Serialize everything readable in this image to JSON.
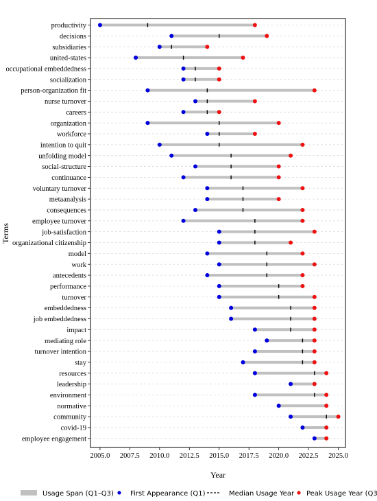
{
  "chart_data": {
    "type": "dumbbell",
    "xlabel": "Year",
    "ylabel": "Terms",
    "xlim": [
      2004.2,
      2025.6
    ],
    "xticks": [
      2005.0,
      2007.5,
      2010.0,
      2012.5,
      2015.0,
      2017.5,
      2020.0,
      2022.5,
      2025.0
    ],
    "xtick_labels": [
      "2005.0",
      "2007.5",
      "2010.0",
      "2012.5",
      "2015.0",
      "2017.5",
      "2020.0",
      "2022.5",
      "2025.0"
    ],
    "grid": "horizontal dashed",
    "legend_position": "bottom",
    "legend": {
      "span": "Usage Span (Q1–Q3)",
      "first": "First Appearance (Q1)",
      "median": "Median Usage Year",
      "peak": "Peak Usage Year (Q3)"
    },
    "colors": {
      "span": "#c0c0c0",
      "first": "#0000dd",
      "median": "#000000",
      "peak": "#ee1111",
      "grid": "#d9d9d9"
    },
    "terms": [
      {
        "term": "productivity",
        "q1": 2005,
        "median": 2009,
        "q3": 2018
      },
      {
        "term": "decisions",
        "q1": 2011,
        "median": 2015,
        "q3": 2019
      },
      {
        "term": "subsidiaries",
        "q1": 2010,
        "median": 2011,
        "q3": 2014
      },
      {
        "term": "united-states",
        "q1": 2008,
        "median": 2012,
        "q3": 2017
      },
      {
        "term": "occupational embeddedness",
        "q1": 2012,
        "median": 2013,
        "q3": 2015
      },
      {
        "term": "socialization",
        "q1": 2012,
        "median": 2013,
        "q3": 2015
      },
      {
        "term": "person-organization fit",
        "q1": 2009,
        "median": 2014,
        "q3": 2023
      },
      {
        "term": "nurse turnover",
        "q1": 2013,
        "median": 2014,
        "q3": 2018
      },
      {
        "term": "careers",
        "q1": 2012,
        "median": 2014,
        "q3": 2015
      },
      {
        "term": "organization",
        "q1": 2009,
        "median": 2015,
        "q3": 2020
      },
      {
        "term": "workforce",
        "q1": 2014,
        "median": 2015,
        "q3": 2018
      },
      {
        "term": "intention to quit",
        "q1": 2010,
        "median": 2015,
        "q3": 2022
      },
      {
        "term": "unfolding model",
        "q1": 2011,
        "median": 2016,
        "q3": 2021
      },
      {
        "term": "social-structure",
        "q1": 2013,
        "median": 2016,
        "q3": 2020
      },
      {
        "term": "continuance",
        "q1": 2012,
        "median": 2016,
        "q3": 2020
      },
      {
        "term": "voluntary turnover",
        "q1": 2014,
        "median": 2017,
        "q3": 2022
      },
      {
        "term": "metaanalysis",
        "q1": 2014,
        "median": 2017,
        "q3": 2020
      },
      {
        "term": "consequences",
        "q1": 2013,
        "median": 2017,
        "q3": 2022
      },
      {
        "term": "employee turnover",
        "q1": 2012,
        "median": 2018,
        "q3": 2022
      },
      {
        "term": "job-satisfaction",
        "q1": 2015,
        "median": 2018,
        "q3": 2023
      },
      {
        "term": "organizational citizenship",
        "q1": 2015,
        "median": 2018,
        "q3": 2021
      },
      {
        "term": "model",
        "q1": 2014,
        "median": 2019,
        "q3": 2022
      },
      {
        "term": "work",
        "q1": 2015,
        "median": 2019,
        "q3": 2023
      },
      {
        "term": "antecedents",
        "q1": 2014,
        "median": 2019,
        "q3": 2022
      },
      {
        "term": "performance",
        "q1": 2015,
        "median": 2020,
        "q3": 2022
      },
      {
        "term": "turnover",
        "q1": 2015,
        "median": 2020,
        "q3": 2023
      },
      {
        "term": "embeddedness",
        "q1": 2016,
        "median": 2021,
        "q3": 2023
      },
      {
        "term": "job embeddedness",
        "q1": 2016,
        "median": 2021,
        "q3": 2023
      },
      {
        "term": "impact",
        "q1": 2018,
        "median": 2021,
        "q3": 2023
      },
      {
        "term": "mediating role",
        "q1": 2019,
        "median": 2022,
        "q3": 2023
      },
      {
        "term": "turnover intention",
        "q1": 2018,
        "median": 2022,
        "q3": 2023
      },
      {
        "term": "stay",
        "q1": 2017,
        "median": 2022,
        "q3": 2023
      },
      {
        "term": "resources",
        "q1": 2018,
        "median": 2023,
        "q3": 2024
      },
      {
        "term": "leadership",
        "q1": 2021,
        "median": 2023,
        "q3": 2023
      },
      {
        "term": "environment",
        "q1": 2018,
        "median": 2023,
        "q3": 2024
      },
      {
        "term": "normative",
        "q1": 2020,
        "median": 2024,
        "q3": 2024
      },
      {
        "term": "community",
        "q1": 2021,
        "median": 2024,
        "q3": 2025
      },
      {
        "term": "covid-19",
        "q1": 2022,
        "median": 2024,
        "q3": 2024
      },
      {
        "term": "employee engagement",
        "q1": 2023,
        "median": 2024,
        "q3": 2024
      }
    ]
  }
}
